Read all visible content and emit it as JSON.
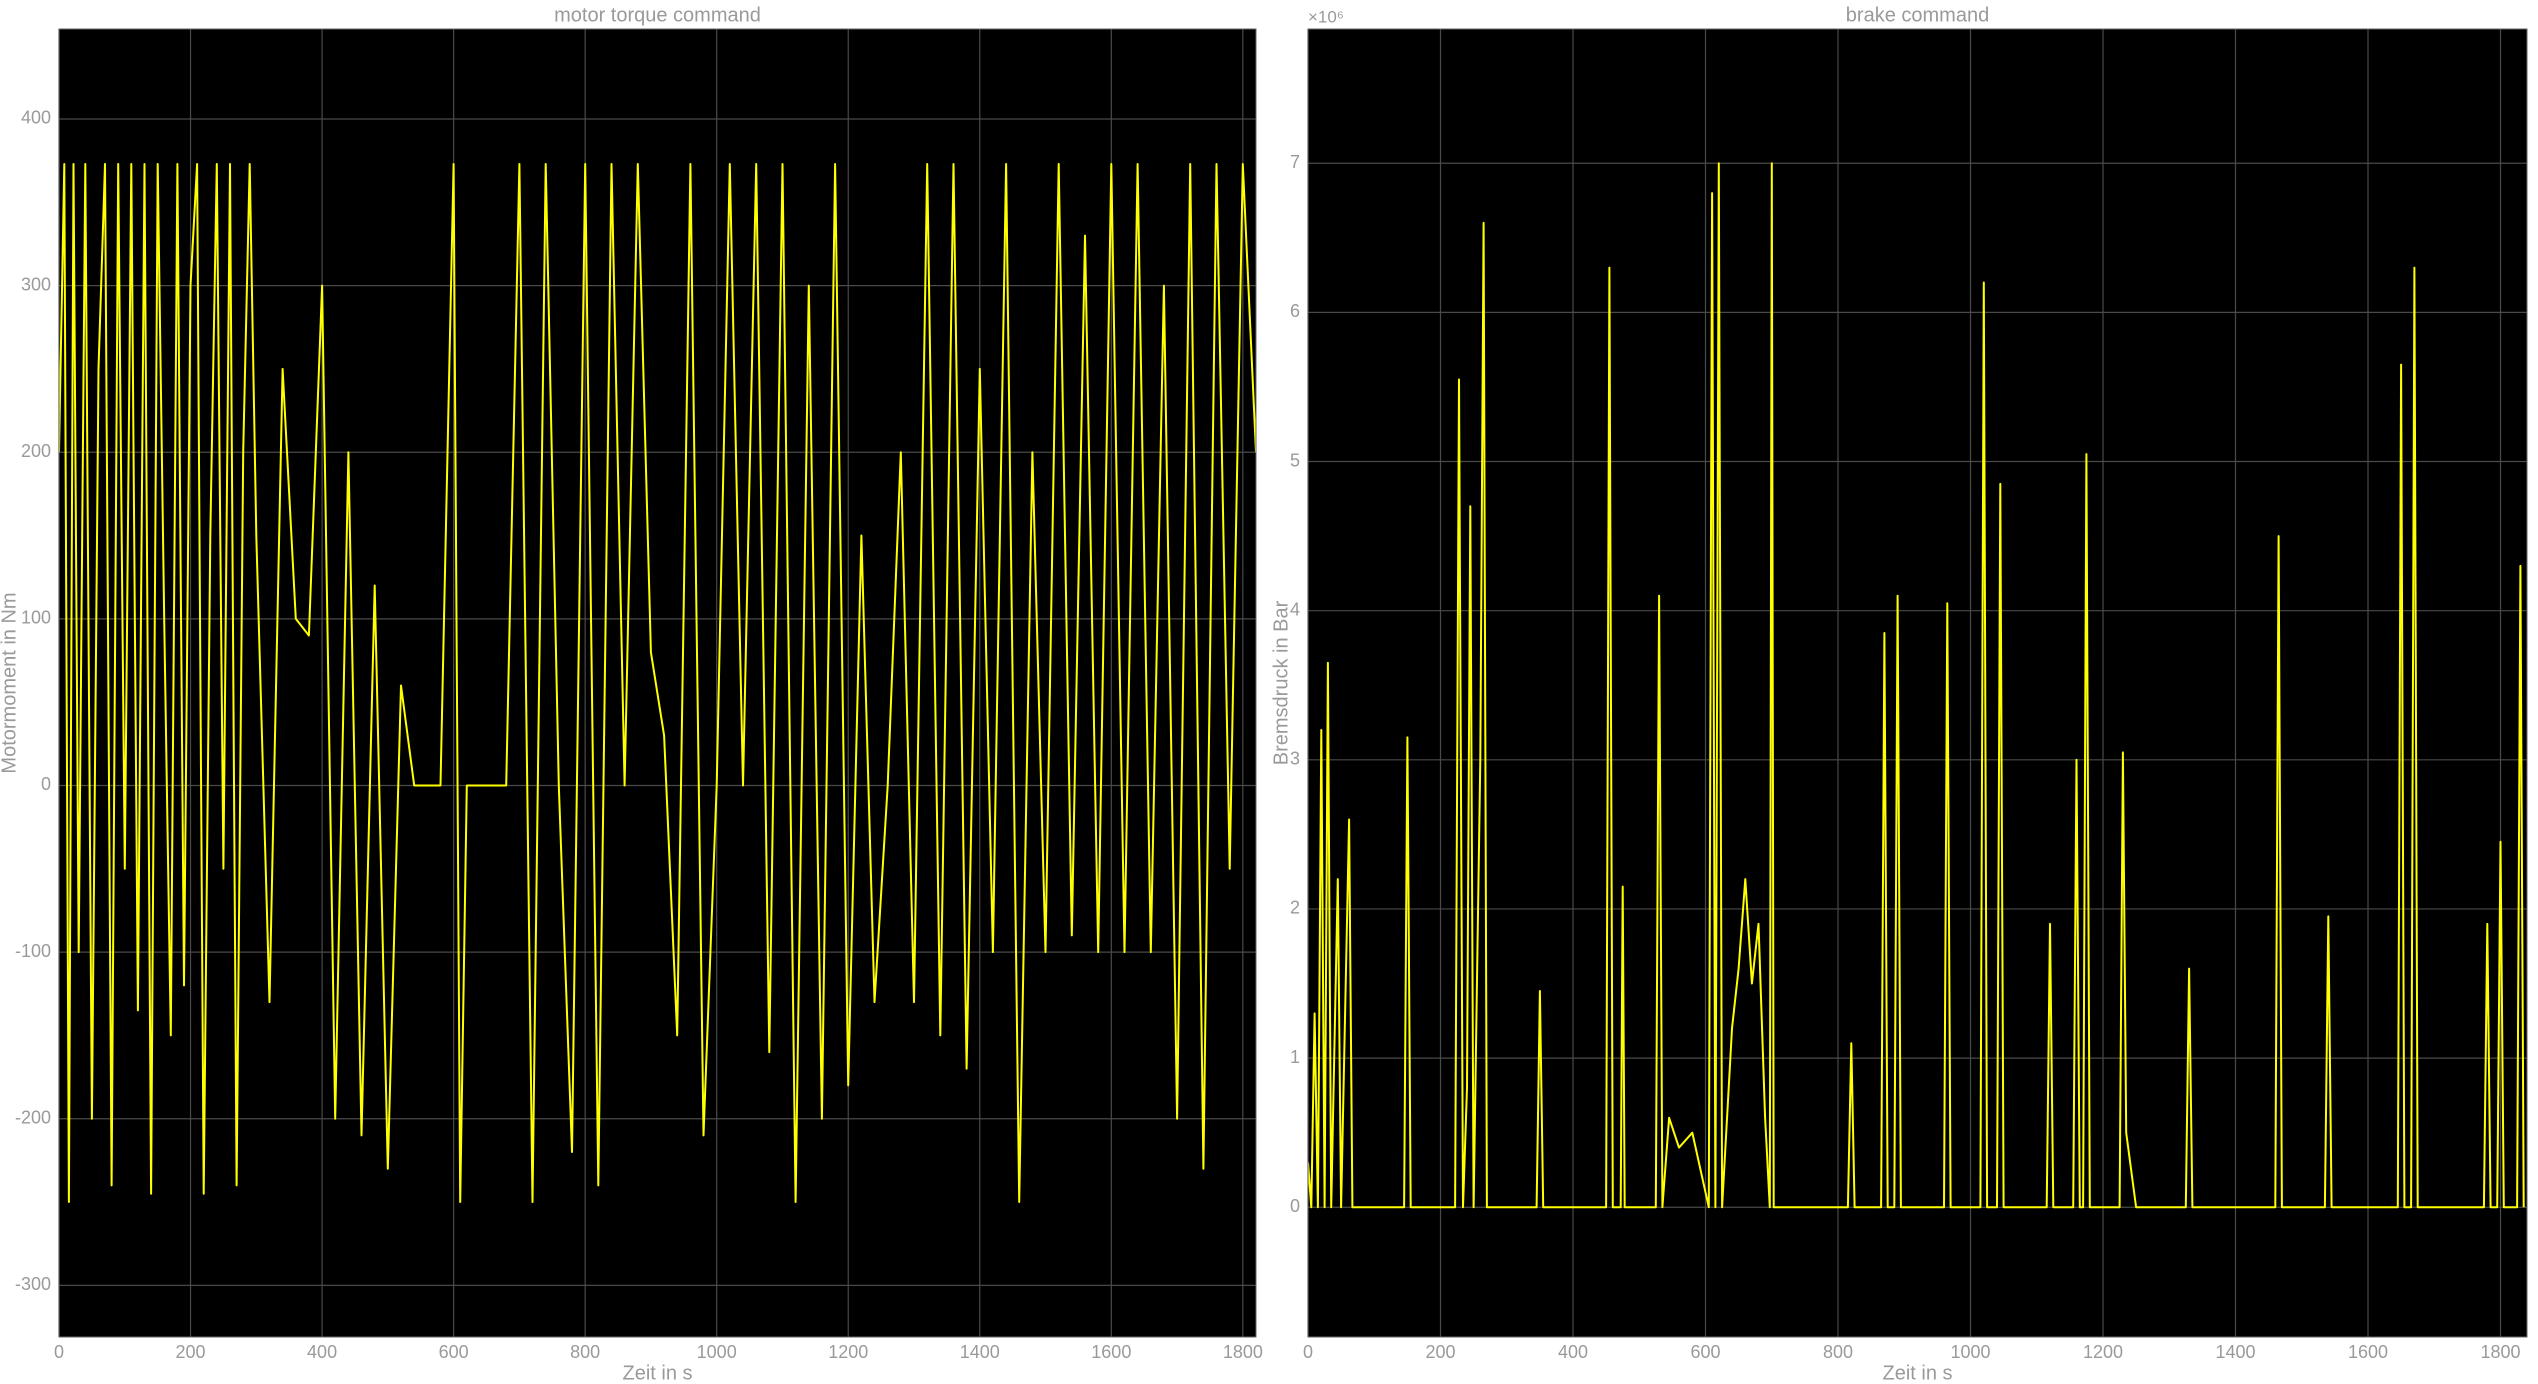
{
  "chart_data": [
    {
      "type": "line",
      "title": "motor torque command",
      "x_label": "Zeit in s",
      "y_label": "Motormoment in Nm",
      "xlim": [
        0,
        1820
      ],
      "ylim": [
        -331,
        454
      ],
      "xticks": [
        0,
        200,
        400,
        600,
        800,
        1000,
        1200,
        1400,
        1600,
        1800
      ],
      "yticks": [
        -300,
        -200,
        -100,
        0,
        100,
        200,
        300,
        400
      ],
      "grid": true,
      "series": [
        {
          "name": "motor torque command",
          "color": "#ffff00",
          "x": [
            0,
            8,
            15,
            22,
            30,
            40,
            50,
            60,
            70,
            80,
            90,
            100,
            110,
            120,
            130,
            140,
            150,
            160,
            170,
            180,
            190,
            200,
            210,
            220,
            230,
            240,
            250,
            260,
            270,
            280,
            290,
            300,
            320,
            340,
            360,
            380,
            400,
            420,
            440,
            460,
            480,
            500,
            520,
            540,
            560,
            580,
            600,
            610,
            620,
            640,
            660,
            680,
            700,
            720,
            740,
            760,
            780,
            800,
            820,
            840,
            860,
            880,
            900,
            920,
            940,
            960,
            980,
            1000,
            1020,
            1040,
            1060,
            1080,
            1100,
            1120,
            1140,
            1160,
            1180,
            1200,
            1220,
            1240,
            1260,
            1280,
            1300,
            1320,
            1340,
            1360,
            1380,
            1400,
            1420,
            1440,
            1460,
            1480,
            1500,
            1520,
            1540,
            1560,
            1580,
            1600,
            1620,
            1640,
            1660,
            1680,
            1700,
            1720,
            1740,
            1760,
            1780,
            1800,
            1820
          ],
          "values": [
            200,
            373,
            -250,
            373,
            -100,
            373,
            -200,
            250,
            373,
            -240,
            373,
            -50,
            373,
            -135,
            373,
            -245,
            373,
            100,
            -150,
            373,
            -120,
            300,
            373,
            -245,
            150,
            373,
            -50,
            373,
            -240,
            200,
            373,
            150,
            -130,
            250,
            100,
            90,
            300,
            -200,
            200,
            -210,
            120,
            -230,
            60,
            0,
            0,
            0,
            373,
            -250,
            0,
            0,
            0,
            0,
            373,
            -250,
            373,
            0,
            -220,
            373,
            -240,
            373,
            0,
            373,
            80,
            30,
            -150,
            373,
            -210,
            0,
            373,
            0,
            373,
            -160,
            373,
            -250,
            300,
            -200,
            373,
            -180,
            150,
            -130,
            0,
            200,
            -130,
            373,
            -150,
            373,
            -170,
            250,
            -100,
            373,
            -250,
            200,
            -100,
            373,
            -90,
            330,
            -100,
            373,
            -100,
            373,
            -100,
            300,
            -200,
            373,
            -230,
            373,
            -50,
            373,
            200
          ]
        }
      ]
    },
    {
      "type": "line",
      "title": "brake command",
      "x_label": "Zeit in s",
      "y_label": "Bremsdruck in Bar",
      "y_exponent_label": "×10⁶",
      "xlim": [
        0,
        1840
      ],
      "ylim": [
        -0.87,
        7.9
      ],
      "xticks": [
        0,
        200,
        400,
        600,
        800,
        1000,
        1200,
        1400,
        1600,
        1800
      ],
      "yticks": [
        0,
        1,
        2,
        3,
        4,
        5,
        6,
        7
      ],
      "grid": true,
      "series": [
        {
          "name": "brake command",
          "color": "#ffff00",
          "x": [
            0,
            5,
            10,
            15,
            20,
            25,
            30,
            35,
            45,
            50,
            62,
            67,
            80,
            145,
            150,
            155,
            222,
            228,
            234,
            240,
            245,
            250,
            260,
            265,
            270,
            345,
            350,
            355,
            450,
            455,
            460,
            472,
            475,
            478,
            525,
            530,
            535,
            545,
            560,
            580,
            600,
            605,
            610,
            615,
            620,
            625,
            640,
            650,
            660,
            670,
            680,
            690,
            697,
            700,
            703,
            715,
            815,
            820,
            825,
            865,
            870,
            875,
            885,
            890,
            895,
            960,
            965,
            970,
            1015,
            1020,
            1025,
            1040,
            1045,
            1050,
            1115,
            1120,
            1125,
            1155,
            1160,
            1165,
            1170,
            1175,
            1180,
            1225,
            1230,
            1235,
            1250,
            1325,
            1330,
            1335,
            1460,
            1465,
            1470,
            1535,
            1540,
            1545,
            1645,
            1650,
            1655,
            1665,
            1670,
            1675,
            1775,
            1780,
            1785,
            1795,
            1800,
            1805,
            1825,
            1830,
            1835
          ],
          "values": [
            0.3,
            0,
            1.3,
            0,
            3.2,
            0,
            3.65,
            0,
            2.2,
            0,
            2.6,
            0,
            0,
            0,
            3.15,
            0,
            0,
            5.55,
            0,
            0.8,
            4.7,
            0,
            3.0,
            6.6,
            0,
            0,
            1.45,
            0,
            0,
            6.3,
            0,
            0,
            2.15,
            0,
            0,
            4.1,
            0,
            0.6,
            0.4,
            0.5,
            0.1,
            0,
            6.8,
            0,
            7.0,
            0,
            1.2,
            1.6,
            2.2,
            1.5,
            1.9,
            0.6,
            0,
            7.0,
            0,
            0,
            0,
            1.1,
            0,
            0,
            3.85,
            0,
            0,
            4.1,
            0,
            0,
            4.05,
            0,
            0,
            6.2,
            0,
            0,
            4.85,
            0,
            0,
            1.9,
            0,
            0,
            3.0,
            0,
            0,
            5.05,
            0,
            0,
            3.05,
            0.5,
            0,
            0,
            1.6,
            0,
            0,
            4.5,
            0,
            0,
            1.95,
            0,
            0,
            5.65,
            0,
            0,
            6.3,
            0,
            0,
            1.9,
            0,
            0,
            2.45,
            0,
            0,
            4.3,
            0
          ]
        }
      ]
    }
  ]
}
